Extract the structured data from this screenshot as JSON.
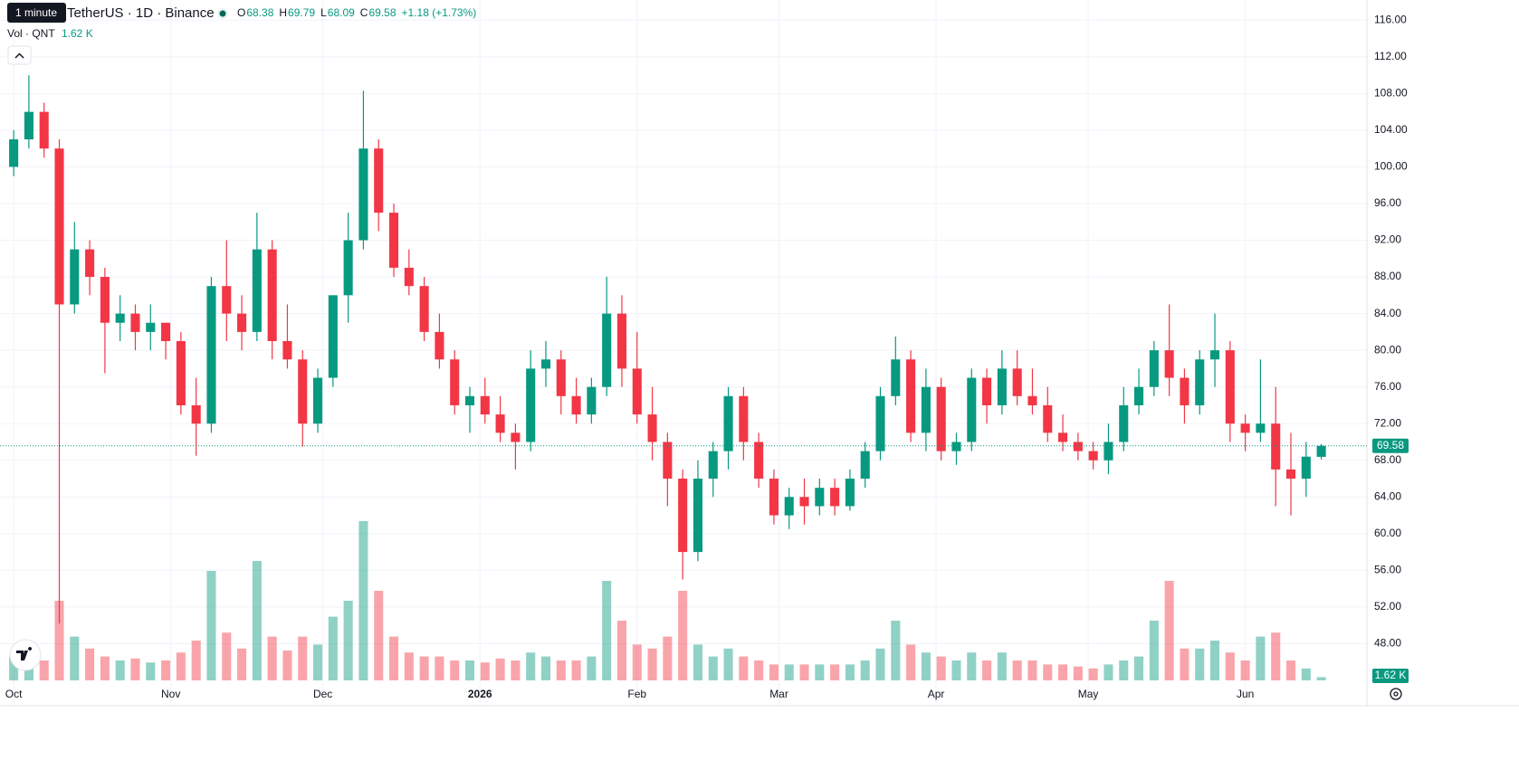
{
  "chart_data": {
    "type": "candlestick",
    "title": "TetherUS · 1D · Binance",
    "interval_tooltip": "1 minute",
    "ohlc_labels": [
      "O",
      "H",
      "L",
      "C"
    ],
    "change_label": "+1.18 (+1.73%)",
    "volume_title": "Vol · QNT",
    "last_volume_label": "1.62 K",
    "colors": {
      "up": "#089981",
      "down": "#f23645"
    },
    "grid": true,
    "x": [
      0,
      3,
      6,
      9,
      12,
      15,
      18,
      21,
      24,
      27,
      30,
      33,
      36,
      39,
      42,
      45,
      48,
      51,
      54,
      57,
      60,
      63,
      66,
      69,
      72,
      75,
      78,
      81,
      84,
      87,
      90,
      93,
      96,
      99,
      102,
      105,
      108,
      111,
      114,
      117,
      120,
      123,
      126,
      129,
      132,
      135,
      138,
      141,
      144,
      147,
      150,
      153,
      156,
      159,
      162,
      165,
      168,
      171,
      174,
      177,
      180,
      183,
      186,
      189,
      192,
      195,
      198,
      201,
      204,
      207,
      210,
      213,
      216,
      219,
      222,
      225,
      228,
      231,
      234,
      237,
      240,
      243,
      246,
      249,
      252,
      255,
      258
    ],
    "open": [
      100,
      103,
      106,
      102,
      85,
      91,
      88,
      83,
      84,
      82,
      83,
      81,
      74,
      72,
      87,
      84,
      82,
      91,
      81,
      79,
      72,
      77,
      86,
      92,
      102,
      95,
      89,
      87,
      82,
      79,
      74,
      75,
      73,
      71,
      70,
      78,
      79,
      75,
      73,
      76,
      84,
      78,
      73,
      70,
      66,
      58,
      66,
      69,
      75,
      70,
      66,
      62,
      64,
      63,
      65,
      63,
      66,
      69,
      75,
      79,
      71,
      76,
      69,
      70,
      77,
      74,
      78,
      75,
      74,
      71,
      70,
      69,
      68,
      70,
      74,
      76,
      80,
      77,
      74,
      79,
      80,
      72,
      71,
      72,
      67,
      66,
      68.38
    ],
    "high": [
      104,
      110,
      107,
      103,
      94,
      92,
      89,
      86,
      85,
      85,
      83,
      82,
      77,
      88,
      92,
      86,
      95,
      92,
      85,
      80,
      78,
      86,
      95,
      108.3,
      103,
      96,
      91,
      88,
      84,
      80,
      76,
      77,
      75,
      72,
      80,
      81,
      80,
      77,
      77,
      88,
      86,
      82,
      76,
      71,
      67,
      68,
      70,
      76,
      76,
      71,
      67,
      65,
      66,
      66,
      66,
      67,
      70,
      76,
      81.5,
      80,
      78,
      77,
      71,
      78,
      78,
      80,
      80,
      78,
      76,
      73,
      71,
      70,
      72,
      76,
      78,
      81,
      85,
      78,
      80,
      84,
      81,
      73,
      79,
      76,
      71,
      70,
      69.79
    ],
    "low": [
      99,
      102,
      101,
      50.2,
      84,
      86,
      77.5,
      81,
      80,
      80,
      79,
      73,
      68.5,
      71,
      81,
      80,
      81,
      79,
      78,
      69.5,
      71,
      76,
      83,
      91,
      93,
      88,
      86,
      81,
      78,
      73,
      71,
      72,
      70,
      67,
      69,
      76,
      73,
      72,
      72,
      75,
      76,
      72,
      68,
      63,
      55,
      57,
      64,
      67,
      68,
      65,
      61,
      60.5,
      61,
      62,
      62,
      62.5,
      65,
      68,
      74,
      70,
      69,
      68,
      67.5,
      69,
      72,
      73,
      74,
      73,
      70,
      69,
      68,
      67,
      66.5,
      69,
      73,
      75,
      75,
      72,
      73,
      76,
      70,
      69,
      70,
      63,
      62,
      64,
      68.09
    ],
    "close": [
      103,
      106,
      102,
      85,
      91,
      88,
      83,
      84,
      82,
      83,
      81,
      74,
      72,
      87,
      84,
      82,
      91,
      81,
      79,
      72,
      77,
      86,
      92,
      102,
      95,
      89,
      87,
      82,
      79,
      74,
      75,
      73,
      71,
      70,
      78,
      79,
      75,
      73,
      76,
      84,
      78,
      73,
      70,
      66,
      58,
      66,
      69,
      75,
      70,
      66,
      62,
      64,
      63,
      65,
      63,
      66,
      69,
      75,
      79,
      71,
      76,
      69,
      70,
      77,
      74,
      78,
      75,
      74,
      71,
      70,
      69,
      68,
      70,
      74,
      76,
      80,
      77,
      74,
      79,
      80,
      72,
      71,
      72,
      67,
      66,
      68.4,
      69.58
    ],
    "volume": [
      12,
      14,
      10,
      40,
      22,
      16,
      12,
      10,
      11,
      9,
      10,
      14,
      20,
      55,
      24,
      16,
      60,
      22,
      15,
      22,
      18,
      32,
      40,
      80,
      45,
      22,
      14,
      12,
      12,
      10,
      10,
      9,
      11,
      10,
      14,
      12,
      10,
      10,
      12,
      50,
      30,
      18,
      16,
      22,
      45,
      18,
      12,
      16,
      12,
      10,
      8,
      8,
      8,
      8,
      8,
      8,
      10,
      16,
      30,
      18,
      14,
      12,
      10,
      14,
      10,
      14,
      10,
      10,
      8,
      8,
      7,
      6,
      8,
      10,
      12,
      30,
      50,
      16,
      16,
      20,
      14,
      10,
      22,
      24,
      10,
      6,
      1.62
    ],
    "xlim": [
      -2.7,
      267
    ],
    "xticks": [
      {
        "value": 0,
        "label": "Oct"
      },
      {
        "value": 31,
        "label": "Nov"
      },
      {
        "value": 61,
        "label": "Dec"
      },
      {
        "value": 92,
        "label": "2026"
      },
      {
        "value": 123,
        "label": "Feb"
      },
      {
        "value": 151,
        "label": "Mar"
      },
      {
        "value": 182,
        "label": "Apr"
      },
      {
        "value": 212,
        "label": "May"
      },
      {
        "value": 243,
        "label": "Jun"
      }
    ],
    "ylim": [
      44,
      118
    ],
    "yticks": [
      {
        "value": 48,
        "label": "48.00"
      },
      {
        "value": 52,
        "label": "52.00"
      },
      {
        "value": 56,
        "label": "56.00"
      },
      {
        "value": 60,
        "label": "60.00"
      },
      {
        "value": 64,
        "label": "64.00"
      },
      {
        "value": 68,
        "label": "68.00"
      },
      {
        "value": 72,
        "label": "72.00"
      },
      {
        "value": 76,
        "label": "76.00"
      },
      {
        "value": 80,
        "label": "80.00"
      },
      {
        "value": 84,
        "label": "84.00"
      },
      {
        "value": 88,
        "label": "88.00"
      },
      {
        "value": 92,
        "label": "92.00"
      },
      {
        "value": 96,
        "label": "96.00"
      },
      {
        "value": 100,
        "label": "100.00"
      },
      {
        "value": 104,
        "label": "104.00"
      },
      {
        "value": 108,
        "label": "108.00"
      },
      {
        "value": 112,
        "label": "112.00"
      },
      {
        "value": 116,
        "label": "116.00"
      }
    ]
  }
}
